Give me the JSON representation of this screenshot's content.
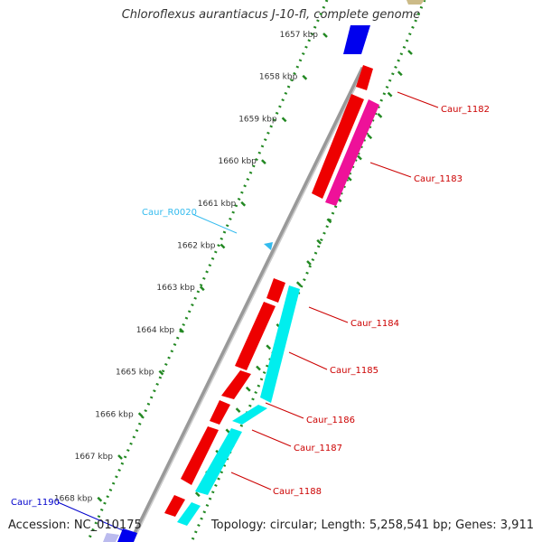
{
  "title": "Chloroflexus aurantiacus J-10-fl, complete genome",
  "footer": {
    "accession": "Accession: NC_010175",
    "summary": "Topology: circular; Length: 5,258,541 bp; Genes: 3,911"
  },
  "ticks": [
    "1657 kbp",
    "1658 kbp",
    "1659 kbp",
    "1660 kbp",
    "1661 kbp",
    "1662 kbp",
    "1663 kbp",
    "1664 kbp",
    "1665 kbp",
    "1666 kbp",
    "1667 kbp",
    "1668 kbp"
  ],
  "gene_labels": [
    {
      "id": "Caur_1182",
      "color": "#cc0000"
    },
    {
      "id": "Caur_1183",
      "color": "#cc0000"
    },
    {
      "id": "Caur_R0020",
      "color": "#33bbee"
    },
    {
      "id": "Caur_1184",
      "color": "#cc0000"
    },
    {
      "id": "Caur_1185",
      "color": "#cc0000"
    },
    {
      "id": "Caur_1186",
      "color": "#cc0000"
    },
    {
      "id": "Caur_1187",
      "color": "#cc0000"
    },
    {
      "id": "Caur_1188",
      "color": "#cc0000"
    },
    {
      "id": "Caur_1190",
      "color": "#0000cc"
    }
  ],
  "colors": {
    "cds_forward": "#ee0000",
    "cds_highlight": "#ee1199",
    "cds_reverse": "#00eeee",
    "rna": "#33bbee",
    "other_gene": "#0000ee",
    "backbone": "#888888",
    "scale_dots": "#228822",
    "tick": "#228822"
  }
}
